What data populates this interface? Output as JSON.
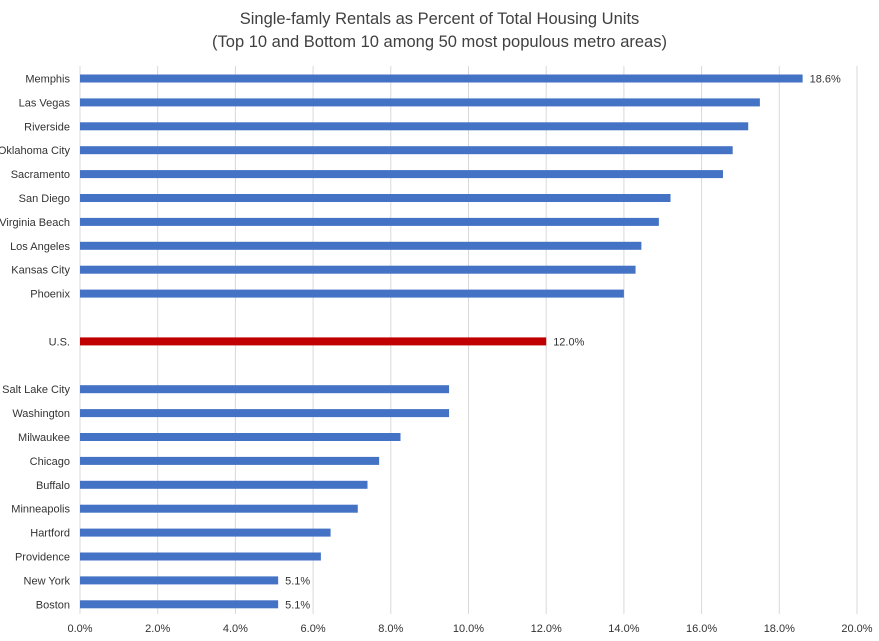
{
  "chart_data": {
    "type": "bar",
    "orientation": "horizontal",
    "title": "Single-famly Rentals as Percent of Total Housing Units",
    "subtitle": "(Top 10 and Bottom 10 among 50 most populous metro areas)",
    "xlabel": "",
    "ylabel": "",
    "xlim": [
      0,
      20
    ],
    "x_ticks": [
      "0.0%",
      "2.0%",
      "4.0%",
      "6.0%",
      "8.0%",
      "10.0%",
      "12.0%",
      "14.0%",
      "16.0%",
      "18.0%",
      "20.0%"
    ],
    "grid": "vertical",
    "legend": "none",
    "colors": {
      "default": "#4472C4",
      "highlight": "#C00000"
    },
    "categories": [
      "Memphis",
      "Las Vegas",
      "Riverside",
      "Oklahoma City",
      "Sacramento",
      "San Diego",
      "Virginia Beach",
      "Los Angeles",
      "Kansas City",
      "Phoenix",
      "",
      "U.S.",
      "",
      "Salt Lake City",
      "Washington",
      "Milwaukee",
      "Chicago",
      "Buffalo",
      "Minneapolis",
      "Hartford",
      "Providence",
      "New York",
      "Boston"
    ],
    "values": [
      18.6,
      17.5,
      17.2,
      16.8,
      16.55,
      15.2,
      14.9,
      14.45,
      14.3,
      14.0,
      null,
      12.0,
      null,
      9.5,
      9.5,
      8.25,
      7.7,
      7.4,
      7.15,
      6.45,
      6.2,
      5.1,
      5.1
    ],
    "highlight": [
      "U.S."
    ],
    "data_labels": {
      "Memphis": "18.6%",
      "U.S.": "12.0%",
      "New York": "5.1%",
      "Boston": "5.1%"
    }
  }
}
